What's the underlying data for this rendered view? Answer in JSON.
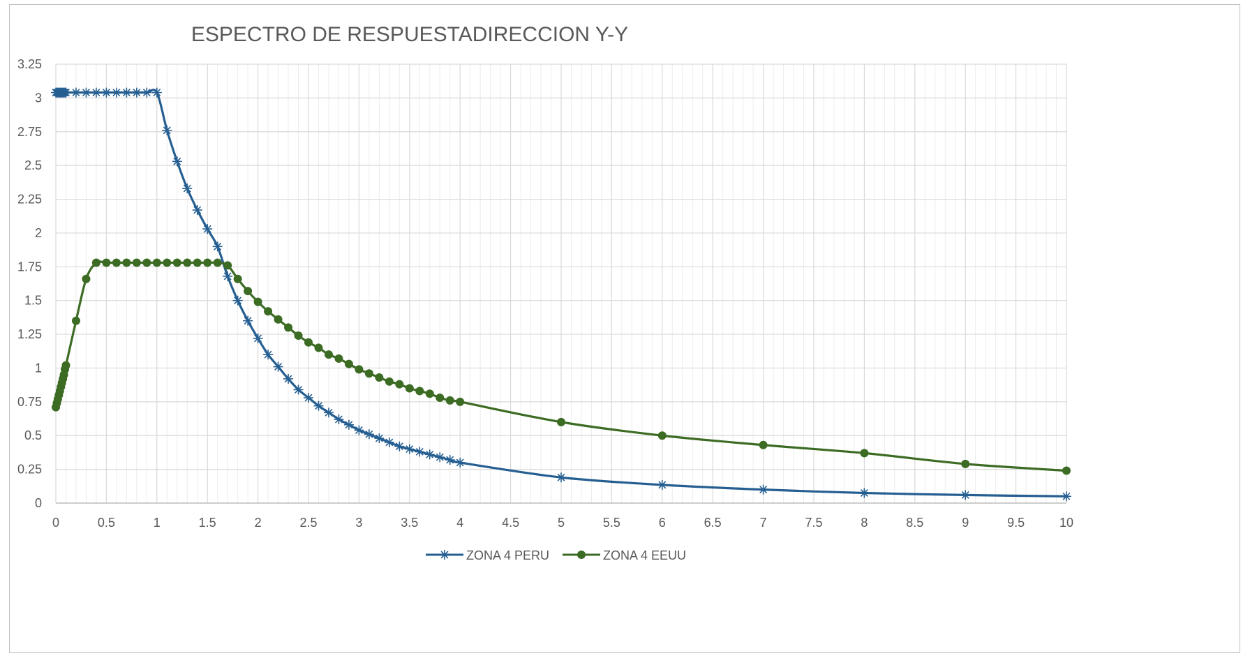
{
  "chart_data": {
    "type": "line",
    "title": "ESPECTRO DE RESPUESTADIRECCION Y-Y",
    "xlabel": "",
    "ylabel": "",
    "xlim": [
      0,
      10
    ],
    "ylim": [
      0,
      3.25
    ],
    "x_ticks": [
      "0",
      "0.5",
      "1",
      "1.5",
      "2",
      "2.5",
      "3",
      "3.5",
      "4",
      "4.5",
      "5",
      "5.5",
      "6",
      "6.5",
      "7",
      "7.5",
      "8",
      "8.5",
      "9",
      "9.5",
      "10"
    ],
    "y_ticks": [
      "0",
      "0.25",
      "0.5",
      "0.75",
      "1",
      "1.25",
      "1.5",
      "1.75",
      "2",
      "2.25",
      "2.5",
      "2.75",
      "3",
      "3.25"
    ],
    "grid": true,
    "legend_position": "bottom",
    "series": [
      {
        "name": "ZONA 4 PERU",
        "color": "#255e91",
        "marker": "asterisk",
        "x": [
          0,
          0.01,
          0.02,
          0.03,
          0.04,
          0.05,
          0.06,
          0.07,
          0.08,
          0.09,
          0.1,
          0.2,
          0.3,
          0.4,
          0.5,
          0.6,
          0.7,
          0.8,
          0.9,
          1.0,
          1.1,
          1.2,
          1.3,
          1.4,
          1.5,
          1.6,
          1.7,
          1.8,
          1.9,
          2.0,
          2.1,
          2.2,
          2.3,
          2.4,
          2.5,
          2.6,
          2.7,
          2.8,
          2.9,
          3.0,
          3.1,
          3.2,
          3.3,
          3.4,
          3.5,
          3.6,
          3.7,
          3.8,
          3.9,
          4.0,
          5,
          6,
          7,
          8,
          9,
          10
        ],
        "y": [
          3.04,
          3.04,
          3.04,
          3.04,
          3.04,
          3.04,
          3.04,
          3.04,
          3.04,
          3.04,
          3.04,
          3.04,
          3.04,
          3.04,
          3.04,
          3.04,
          3.04,
          3.04,
          3.04,
          3.04,
          2.76,
          2.53,
          2.33,
          2.17,
          2.03,
          1.9,
          1.68,
          1.5,
          1.35,
          1.22,
          1.1,
          1.01,
          0.92,
          0.84,
          0.78,
          0.72,
          0.67,
          0.62,
          0.58,
          0.54,
          0.51,
          0.48,
          0.45,
          0.42,
          0.4,
          0.38,
          0.36,
          0.34,
          0.32,
          0.3,
          0.19,
          0.135,
          0.1,
          0.075,
          0.06,
          0.05
        ]
      },
      {
        "name": "ZONA 4 EEUU",
        "color": "#3c6b23",
        "marker": "circle",
        "x": [
          0,
          0.01,
          0.02,
          0.03,
          0.04,
          0.05,
          0.06,
          0.07,
          0.08,
          0.09,
          0.1,
          0.2,
          0.3,
          0.4,
          0.5,
          0.6,
          0.7,
          0.8,
          0.9,
          1.0,
          1.1,
          1.2,
          1.3,
          1.4,
          1.5,
          1.6,
          1.7,
          1.8,
          1.9,
          2.0,
          2.1,
          2.2,
          2.3,
          2.4,
          2.5,
          2.6,
          2.7,
          2.8,
          2.9,
          3.0,
          3.1,
          3.2,
          3.3,
          3.4,
          3.5,
          3.6,
          3.7,
          3.8,
          3.9,
          4.0,
          5,
          6,
          7,
          8,
          9,
          10
        ],
        "y": [
          0.71,
          0.74,
          0.77,
          0.8,
          0.83,
          0.86,
          0.89,
          0.92,
          0.95,
          0.99,
          1.02,
          1.35,
          1.66,
          1.78,
          1.78,
          1.78,
          1.78,
          1.78,
          1.78,
          1.78,
          1.78,
          1.78,
          1.78,
          1.78,
          1.78,
          1.78,
          1.76,
          1.66,
          1.57,
          1.49,
          1.42,
          1.36,
          1.3,
          1.24,
          1.19,
          1.15,
          1.1,
          1.07,
          1.03,
          0.99,
          0.96,
          0.93,
          0.9,
          0.88,
          0.85,
          0.83,
          0.81,
          0.78,
          0.76,
          0.75,
          0.6,
          0.5,
          0.43,
          0.37,
          0.29,
          0.24
        ]
      }
    ]
  }
}
